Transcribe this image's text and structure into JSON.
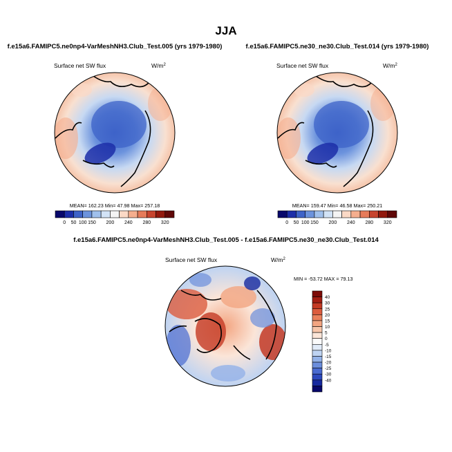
{
  "figure": {
    "season": "JJA"
  },
  "panels": [
    {
      "title": "f.e15a6.FAMIPC5.ne0np4-VarMeshNH3.Club_Test.005 (yrs 1979-1980)",
      "variable": "Surface net SW flux",
      "units": "W/m",
      "units_exp": "2",
      "stats": {
        "mean_label": "MEAN=",
        "mean": "162.23",
        "min_label": "Min=",
        "min": "47.98",
        "max_label": "Max=",
        "max": "257.18"
      }
    },
    {
      "title": "f.e15a6.FAMIPC5.ne30_ne30.Club_Test.014 (yrs 1979-1980)",
      "variable": "Surface net SW flux",
      "units": "W/m",
      "units_exp": "2",
      "stats": {
        "mean_label": "MEAN=",
        "mean": "159.47",
        "min_label": "Min=",
        "min": "46.58",
        "max_label": "Max=",
        "max": "250.21"
      }
    },
    {
      "title": "f.e15a6.FAMIPC5.ne0np4-VarMeshNH3.Club_Test.005 - f.e15a6.FAMIPC5.ne30_ne30.Club_Test.014",
      "variable": "Surface net SW flux",
      "units": "W/m",
      "units_exp": "2",
      "stats_text": "MIN = -53.72 MAX = 79.13"
    }
  ],
  "colors": {
    "bw_levels": [
      "#08086b",
      "#1c2ea8",
      "#3e63c8",
      "#6c93dd",
      "#a0c0ec",
      "#d2e3f6",
      "#f4f4f4",
      "#fbd9c6",
      "#f5ae8e",
      "#e67b5a",
      "#c7452f",
      "#92190e",
      "#600808"
    ],
    "diff_levels": [
      "#07076a",
      "#16299f",
      "#2d49bd",
      "#4a6bd0",
      "#6c8edc",
      "#93b2e8",
      "#bed3f2",
      "#e1ebf8",
      "#fbfbfb",
      "#fbe5d8",
      "#f7c6aa",
      "#f3a581",
      "#ea805c",
      "#dc5c3e",
      "#c43a24",
      "#a31d12",
      "#7d0b07"
    ]
  },
  "chart_data": [
    {
      "type": "heatmap",
      "projection": "north polar stereographic",
      "title": "f.e15a6.FAMIPC5.ne0np4-VarMeshNH3.Club_Test.005 (yrs 1979-1980)",
      "variable": "Surface net SW flux",
      "units": "W/m2",
      "colorbar_ticks": [
        "0",
        "50",
        "100",
        "150",
        "200",
        "240",
        "280",
        "320"
      ],
      "colorbar_levels": [
        0,
        25,
        50,
        75,
        100,
        125,
        150,
        175,
        200,
        220,
        240,
        260,
        280,
        300,
        320
      ],
      "mean": 162.23,
      "min": 47.98,
      "max": 257.18
    },
    {
      "type": "heatmap",
      "projection": "north polar stereographic",
      "title": "f.e15a6.FAMIPC5.ne30_ne30.Club_Test.014 (yrs 1979-1980)",
      "variable": "Surface net SW flux",
      "units": "W/m2",
      "colorbar_ticks": [
        "0",
        "50",
        "100",
        "150",
        "200",
        "240",
        "280",
        "320"
      ],
      "colorbar_levels": [
        0,
        25,
        50,
        75,
        100,
        125,
        150,
        175,
        200,
        220,
        240,
        260,
        280,
        300,
        320
      ],
      "mean": 159.47,
      "min": 46.58,
      "max": 250.21
    },
    {
      "type": "heatmap",
      "projection": "north polar stereographic",
      "title": "f.e15a6.FAMIPC5.ne0np4-VarMeshNH3.Club_Test.005 - f.e15a6.FAMIPC5.ne30_ne30.Club_Test.014",
      "variable": "Surface net SW flux",
      "units": "W/m2",
      "colorbar_ticks": [
        "40",
        "30",
        "25",
        "20",
        "15",
        "10",
        "5",
        "0",
        "-5",
        "-10",
        "-15",
        "-20",
        "-25",
        "-30",
        "-40"
      ],
      "min": -53.72,
      "max": 79.13
    }
  ]
}
